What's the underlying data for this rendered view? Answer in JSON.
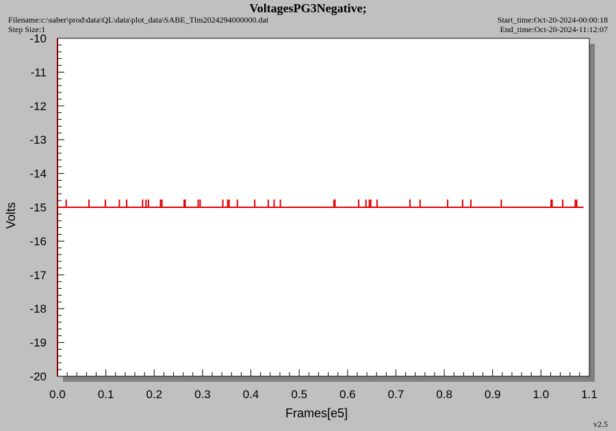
{
  "header": {
    "title": "VoltagesPG3Negative;",
    "filename": "Filename:c:\\saber\\prod\\data\\QL\\data\\plot_data\\SABE_Tlm2024294000000.dat",
    "step_size": "Step Size:1",
    "start_time": "Start_time:Oct-20-2024-00:00:18",
    "end_time": "End_time:Oct-20-2024-11:12:07"
  },
  "footer": {
    "version": "v2.5"
  },
  "colors": {
    "series": "#e00000",
    "axis": "#000000",
    "plot_bg": "#ffffff",
    "page_bg": "#c0c0c0",
    "shadow": "#808080"
  },
  "chart_data": {
    "type": "line",
    "title": "VoltagesPG3Negative;",
    "xlabel": "Frames[e5]",
    "ylabel": "Volts",
    "xlim": [
      0,
      1.1
    ],
    "ylim": [
      -20,
      -10
    ],
    "x_ticks": [
      0.0,
      0.1,
      0.2,
      0.3,
      0.4,
      0.5,
      0.6,
      0.7,
      0.8,
      0.9,
      1.0,
      1.1
    ],
    "x_tick_labels": [
      "0.0",
      "0.1",
      "0.2",
      "0.3",
      "0.4",
      "0.5",
      "0.6",
      "0.7",
      "0.8",
      "0.9",
      "1.0",
      "1.1"
    ],
    "y_ticks": [
      -10,
      -11,
      -12,
      -13,
      -14,
      -15,
      -16,
      -17,
      -18,
      -19,
      -20
    ],
    "y_tick_labels": [
      "-10",
      "-11",
      "-12",
      "-13",
      "-14",
      "-15",
      "-16",
      "-17",
      "-18",
      "-19",
      "-20"
    ],
    "grid": false,
    "series": [
      {
        "baseline": -15.0,
        "x_range": [
          0.0,
          1.088
        ],
        "spike_value": -14.77,
        "spikes_x": [
          0.018,
          0.065,
          0.099,
          0.128,
          0.143,
          0.176,
          0.183,
          0.188,
          0.213,
          0.216,
          0.262,
          0.264,
          0.291,
          0.295,
          0.342,
          0.352,
          0.355,
          0.372,
          0.408,
          0.436,
          0.448,
          0.461,
          0.572,
          0.574,
          0.623,
          0.638,
          0.645,
          0.648,
          0.661,
          0.729,
          0.75,
          0.807,
          0.838,
          0.855,
          0.918,
          1.021,
          1.023,
          1.045,
          1.071,
          1.074
        ]
      }
    ]
  }
}
